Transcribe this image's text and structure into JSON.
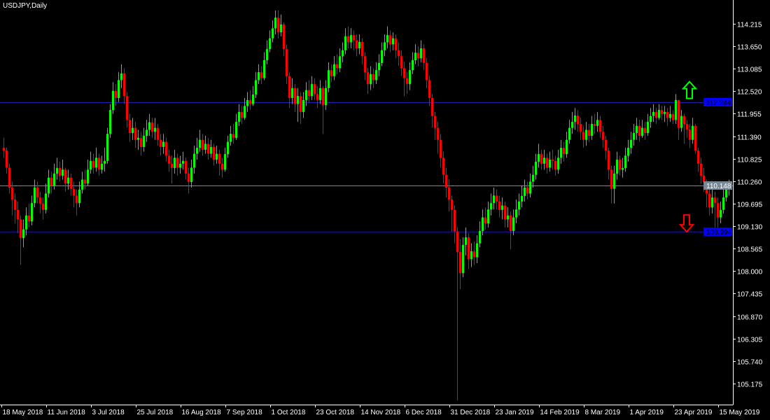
{
  "window": {
    "title": "USDJPY,Daily"
  },
  "colors": {
    "background": "#000000",
    "up": "#00ff00",
    "down": "#ff0000",
    "axis": "#ffffff",
    "resistance_line": "#2020b0",
    "bid_line": "#778899",
    "support_line": "#0000ff"
  },
  "chart_data": {
    "type": "candlestick",
    "symbol": "USDJPY",
    "timeframe": "Daily",
    "ylim": [
      104.647,
      114.813
    ],
    "grid": false,
    "y_ticks": [
      "114.215",
      "113.650",
      "113.085",
      "112.520",
      "111.955",
      "111.390",
      "110.825",
      "110.260",
      "109.695",
      "109.130",
      "108.565",
      "108.000",
      "107.435",
      "106.870",
      "106.305",
      "105.740",
      "105.175"
    ],
    "x_ticks": [
      {
        "label": "18 May 2018",
        "index": 0
      },
      {
        "label": "11 Jun 2018",
        "index": 16
      },
      {
        "label": "3 Jul 2018",
        "index": 32
      },
      {
        "label": "25 Jul 2018",
        "index": 48
      },
      {
        "label": "16 Aug 2018",
        "index": 64
      },
      {
        "label": "7 Sep 2018",
        "index": 80
      },
      {
        "label": "1 Oct 2018",
        "index": 96
      },
      {
        "label": "23 Oct 2018",
        "index": 112
      },
      {
        "label": "14 Nov 2018",
        "index": 128
      },
      {
        "label": "6 Dec 2018",
        "index": 144
      },
      {
        "label": "31 Dec 2018",
        "index": 160
      },
      {
        "label": "23 Jan 2019",
        "index": 176
      },
      {
        "label": "14 Feb 2019",
        "index": 192
      },
      {
        "label": "8 Mar 2019",
        "index": 208
      },
      {
        "label": "1 Apr 2019",
        "index": 224
      },
      {
        "label": "23 Apr 2019",
        "index": 240
      },
      {
        "label": "15 May 2019",
        "index": 256
      }
    ],
    "first_open": 111.1,
    "candles_hlc": [
      [
        111.35,
        110.85,
        111.03
      ],
      [
        111.1,
        110.45,
        110.6
      ],
      [
        110.7,
        109.95,
        110.1
      ],
      [
        110.25,
        109.4,
        109.8
      ],
      [
        109.95,
        109.2,
        109.54
      ],
      [
        109.75,
        108.95,
        109.3
      ],
      [
        109.4,
        108.16,
        108.83
      ],
      [
        109.3,
        108.6,
        109.05
      ],
      [
        109.6,
        108.9,
        109.4
      ],
      [
        109.7,
        109.1,
        109.25
      ],
      [
        109.9,
        109.15,
        109.71
      ],
      [
        110.3,
        109.6,
        110.1
      ],
      [
        110.25,
        109.7,
        109.85
      ],
      [
        110.0,
        109.45,
        109.7
      ],
      [
        109.85,
        109.3,
        109.54
      ],
      [
        110.2,
        109.45,
        109.95
      ],
      [
        110.55,
        109.85,
        110.35
      ],
      [
        110.5,
        109.95,
        110.15
      ],
      [
        110.7,
        110.05,
        110.45
      ],
      [
        110.85,
        110.3,
        110.59
      ],
      [
        110.75,
        110.25,
        110.4
      ],
      [
        110.8,
        110.3,
        110.55
      ],
      [
        110.6,
        110.0,
        110.2
      ],
      [
        110.55,
        110.05,
        110.35
      ],
      [
        110.45,
        109.9,
        110.07
      ],
      [
        110.25,
        109.6,
        109.9
      ],
      [
        110.05,
        109.4,
        109.71
      ],
      [
        110.25,
        109.6,
        110.05
      ],
      [
        110.5,
        109.95,
        110.3
      ],
      [
        110.55,
        110.05,
        110.2
      ],
      [
        110.8,
        110.15,
        110.55
      ],
      [
        111.0,
        110.45,
        110.77
      ],
      [
        110.95,
        110.45,
        110.6
      ],
      [
        111.1,
        110.5,
        110.85
      ],
      [
        110.95,
        110.4,
        110.55
      ],
      [
        110.9,
        110.45,
        110.7
      ],
      [
        111.1,
        110.5,
        110.77
      ],
      [
        111.6,
        110.7,
        111.45
      ],
      [
        112.2,
        111.35,
        112.05
      ],
      [
        112.75,
        111.95,
        112.53
      ],
      [
        112.7,
        112.15,
        112.35
      ],
      [
        113.0,
        112.25,
        112.8
      ],
      [
        113.2,
        112.6,
        112.97
      ],
      [
        113.1,
        112.2,
        112.4
      ],
      [
        112.5,
        111.6,
        111.8
      ],
      [
        111.95,
        111.25,
        111.47
      ],
      [
        111.85,
        111.3,
        111.6
      ],
      [
        111.75,
        111.1,
        111.3
      ],
      [
        111.55,
        111.05,
        111.35
      ],
      [
        111.5,
        110.9,
        111.12
      ],
      [
        111.6,
        111.0,
        111.4
      ],
      [
        111.8,
        111.25,
        111.55
      ],
      [
        111.95,
        111.4,
        111.74
      ],
      [
        111.85,
        111.35,
        111.5
      ],
      [
        111.85,
        111.3,
        111.6
      ],
      [
        111.7,
        111.15,
        111.3
      ],
      [
        111.45,
        110.9,
        111.12
      ],
      [
        111.45,
        110.95,
        111.25
      ],
      [
        111.35,
        110.75,
        110.9
      ],
      [
        111.05,
        110.5,
        110.7
      ],
      [
        110.9,
        110.2,
        110.59
      ],
      [
        111.05,
        110.45,
        110.85
      ],
      [
        110.95,
        110.4,
        110.6
      ],
      [
        110.9,
        110.45,
        110.7
      ],
      [
        111.0,
        110.55,
        110.77
      ],
      [
        110.85,
        110.3,
        110.45
      ],
      [
        110.6,
        109.95,
        110.24
      ],
      [
        110.8,
        110.1,
        110.6
      ],
      [
        111.15,
        110.45,
        110.95
      ],
      [
        111.35,
        110.8,
        111.1
      ],
      [
        111.55,
        111.0,
        111.3
      ],
      [
        111.45,
        110.9,
        111.05
      ],
      [
        111.4,
        110.95,
        111.2
      ],
      [
        111.35,
        110.8,
        110.95
      ],
      [
        111.3,
        110.85,
        111.12
      ],
      [
        111.2,
        110.65,
        110.8
      ],
      [
        111.15,
        110.7,
        110.95
      ],
      [
        111.05,
        110.4,
        110.7
      ],
      [
        110.85,
        110.35,
        110.55
      ],
      [
        111.1,
        110.5,
        110.94
      ],
      [
        111.4,
        110.85,
        111.25
      ],
      [
        111.65,
        111.15,
        111.45
      ],
      [
        111.7,
        111.2,
        111.35
      ],
      [
        111.95,
        111.3,
        111.75
      ],
      [
        112.2,
        111.65,
        112.0
      ],
      [
        112.15,
        111.7,
        111.85
      ],
      [
        112.35,
        111.8,
        112.15
      ],
      [
        112.5,
        112.0,
        112.3
      ],
      [
        112.55,
        112.05,
        112.2
      ],
      [
        112.65,
        112.15,
        112.44
      ],
      [
        113.0,
        112.35,
        112.8
      ],
      [
        113.2,
        112.7,
        113.0
      ],
      [
        113.15,
        112.7,
        112.85
      ],
      [
        113.5,
        112.8,
        113.3
      ],
      [
        113.8,
        113.2,
        113.58
      ],
      [
        114.05,
        113.5,
        113.85
      ],
      [
        114.3,
        113.75,
        114.1
      ],
      [
        114.55,
        113.95,
        114.37
      ],
      [
        114.55,
        113.85,
        114.0
      ],
      [
        114.45,
        113.9,
        114.2
      ],
      [
        114.25,
        113.4,
        113.58
      ],
      [
        113.7,
        112.7,
        112.9
      ],
      [
        113.0,
        112.1,
        112.35
      ],
      [
        112.85,
        112.2,
        112.6
      ],
      [
        112.7,
        112.0,
        112.2
      ],
      [
        112.6,
        111.75,
        112.4
      ],
      [
        112.5,
        111.7,
        112.0
      ],
      [
        112.5,
        111.85,
        112.3
      ],
      [
        112.75,
        112.15,
        112.55
      ],
      [
        112.8,
        112.25,
        112.4
      ],
      [
        112.9,
        112.3,
        112.7
      ],
      [
        112.85,
        112.3,
        112.45
      ],
      [
        112.65,
        112.1,
        112.3
      ],
      [
        112.8,
        112.2,
        112.6
      ],
      [
        112.65,
        111.45,
        112.17
      ],
      [
        112.8,
        112.05,
        112.6
      ],
      [
        113.25,
        112.5,
        113.05
      ],
      [
        113.2,
        112.75,
        112.9
      ],
      [
        113.4,
        112.8,
        113.2
      ],
      [
        113.45,
        112.95,
        113.1
      ],
      [
        113.6,
        113.0,
        113.4
      ],
      [
        113.75,
        113.25,
        113.55
      ],
      [
        114.1,
        113.45,
        113.9
      ],
      [
        114.15,
        113.6,
        113.75
      ],
      [
        114.1,
        113.6,
        113.93
      ],
      [
        114.05,
        113.55,
        113.8
      ],
      [
        113.95,
        113.4,
        113.6
      ],
      [
        113.95,
        113.45,
        113.76
      ],
      [
        113.85,
        113.2,
        113.4
      ],
      [
        113.5,
        112.8,
        113.0
      ],
      [
        113.1,
        112.45,
        112.7
      ],
      [
        113.15,
        112.55,
        112.95
      ],
      [
        113.1,
        112.6,
        112.8
      ],
      [
        113.25,
        112.7,
        113.05
      ],
      [
        113.45,
        112.9,
        113.23
      ],
      [
        113.75,
        113.15,
        113.55
      ],
      [
        113.95,
        113.4,
        113.75
      ],
      [
        114.15,
        113.6,
        113.93
      ],
      [
        114.05,
        113.5,
        113.7
      ],
      [
        114.0,
        113.55,
        113.85
      ],
      [
        113.95,
        113.35,
        113.55
      ],
      [
        113.75,
        113.15,
        113.4
      ],
      [
        113.55,
        112.9,
        113.1
      ],
      [
        113.25,
        112.4,
        112.85
      ],
      [
        113.0,
        112.45,
        112.7
      ],
      [
        113.25,
        112.55,
        113.05
      ],
      [
        113.5,
        112.95,
        113.3
      ],
      [
        113.7,
        113.2,
        113.49
      ],
      [
        113.65,
        113.15,
        113.35
      ],
      [
        113.8,
        113.25,
        113.6
      ],
      [
        113.7,
        113.05,
        113.23
      ],
      [
        113.35,
        112.6,
        112.8
      ],
      [
        112.9,
        112.15,
        112.35
      ],
      [
        112.45,
        111.6,
        111.9
      ],
      [
        112.0,
        111.3,
        111.6
      ],
      [
        111.75,
        110.95,
        111.3
      ],
      [
        111.45,
        110.6,
        110.85
      ],
      [
        111.0,
        110.2,
        110.42
      ],
      [
        110.6,
        109.85,
        110.1
      ],
      [
        110.3,
        109.5,
        109.8
      ],
      [
        109.9,
        109.0,
        109.54
      ],
      [
        109.65,
        108.7,
        109.0
      ],
      [
        109.1,
        104.75,
        108.48
      ],
      [
        108.8,
        107.55,
        107.95
      ],
      [
        108.85,
        107.85,
        108.66
      ],
      [
        109.1,
        108.4,
        108.85
      ],
      [
        108.95,
        108.05,
        108.3
      ],
      [
        108.7,
        108.1,
        108.5
      ],
      [
        108.75,
        108.15,
        108.35
      ],
      [
        108.9,
        108.2,
        108.7
      ],
      [
        109.25,
        108.6,
        109.01
      ],
      [
        109.55,
        108.9,
        109.35
      ],
      [
        109.6,
        109.05,
        109.2
      ],
      [
        109.75,
        109.1,
        109.55
      ],
      [
        109.95,
        109.4,
        109.71
      ],
      [
        110.1,
        109.55,
        109.9
      ],
      [
        110.05,
        109.55,
        109.75
      ],
      [
        109.9,
        109.35,
        109.54
      ],
      [
        109.85,
        109.3,
        109.65
      ],
      [
        109.75,
        109.1,
        109.3
      ],
      [
        109.6,
        109.1,
        109.4
      ],
      [
        109.5,
        108.55,
        109.01
      ],
      [
        109.55,
        108.9,
        109.35
      ],
      [
        109.8,
        109.2,
        109.55
      ],
      [
        109.95,
        109.4,
        109.75
      ],
      [
        110.15,
        109.6,
        109.89
      ],
      [
        110.3,
        109.75,
        110.1
      ],
      [
        110.25,
        109.8,
        109.95
      ],
      [
        110.45,
        109.85,
        110.25
      ],
      [
        110.65,
        110.1,
        110.42
      ],
      [
        110.95,
        110.3,
        110.75
      ],
      [
        111.2,
        110.6,
        110.94
      ],
      [
        111.05,
        110.55,
        110.7
      ],
      [
        111.05,
        110.55,
        110.85
      ],
      [
        110.95,
        110.45,
        110.6
      ],
      [
        111.0,
        110.5,
        110.8
      ],
      [
        111.05,
        110.55,
        110.77
      ],
      [
        110.9,
        110.4,
        110.55
      ],
      [
        111.05,
        110.45,
        110.85
      ],
      [
        111.3,
        110.7,
        111.1
      ],
      [
        111.25,
        110.75,
        110.94
      ],
      [
        111.5,
        110.85,
        111.3
      ],
      [
        111.8,
        111.2,
        111.6
      ],
      [
        112.0,
        111.45,
        111.75
      ],
      [
        112.1,
        111.55,
        111.91
      ],
      [
        112.05,
        111.5,
        111.7
      ],
      [
        111.85,
        111.3,
        111.5
      ],
      [
        111.65,
        111.1,
        111.3
      ],
      [
        111.75,
        111.15,
        111.55
      ],
      [
        111.7,
        111.25,
        111.4
      ],
      [
        111.9,
        111.3,
        111.7
      ],
      [
        111.95,
        111.45,
        111.65
      ],
      [
        112.0,
        111.5,
        111.8
      ],
      [
        111.9,
        111.35,
        111.5
      ],
      [
        111.65,
        111.1,
        111.3
      ],
      [
        111.4,
        110.8,
        111.03
      ],
      [
        111.1,
        110.3,
        110.55
      ],
      [
        110.65,
        109.7,
        110.07
      ],
      [
        110.65,
        109.7,
        110.45
      ],
      [
        111.0,
        110.3,
        110.8
      ],
      [
        110.9,
        110.4,
        110.55
      ],
      [
        110.85,
        110.35,
        110.59
      ],
      [
        111.1,
        110.5,
        110.9
      ],
      [
        111.3,
        110.75,
        111.1
      ],
      [
        111.5,
        110.95,
        111.3
      ],
      [
        111.7,
        111.15,
        111.47
      ],
      [
        111.85,
        111.3,
        111.65
      ],
      [
        111.8,
        111.25,
        111.4
      ],
      [
        111.8,
        111.35,
        111.6
      ],
      [
        111.75,
        111.3,
        111.47
      ],
      [
        111.95,
        111.4,
        111.75
      ],
      [
        112.1,
        111.6,
        111.9
      ],
      [
        112.2,
        111.75,
        112.0
      ],
      [
        112.1,
        111.7,
        111.85
      ],
      [
        112.2,
        111.8,
        112.05
      ],
      [
        112.15,
        111.8,
        111.95
      ],
      [
        112.15,
        111.75,
        112.0
      ],
      [
        112.1,
        111.65,
        111.85
      ],
      [
        112.15,
        111.75,
        111.95
      ],
      [
        112.05,
        111.7,
        111.8
      ],
      [
        112.45,
        111.7,
        112.3
      ],
      [
        112.3,
        111.3,
        111.6
      ],
      [
        112.05,
        111.5,
        111.9
      ],
      [
        111.95,
        111.2,
        111.7
      ],
      [
        111.8,
        111.35,
        111.56
      ],
      [
        111.7,
        111.1,
        111.3
      ],
      [
        111.85,
        111.2,
        111.65
      ],
      [
        111.7,
        110.95,
        111.03
      ],
      [
        111.1,
        110.5,
        110.7
      ],
      [
        110.85,
        110.2,
        110.4
      ],
      [
        110.6,
        110.0,
        110.24
      ],
      [
        110.3,
        109.6,
        109.95
      ],
      [
        110.1,
        109.4,
        109.6
      ],
      [
        110.05,
        109.45,
        109.85
      ],
      [
        110.0,
        109.1,
        109.71
      ],
      [
        109.85,
        109.0,
        109.35
      ],
      [
        109.75,
        109.2,
        109.54
      ],
      [
        110.05,
        109.45,
        109.85
      ],
      [
        110.25,
        109.75,
        110.05
      ],
      [
        110.3,
        109.9,
        110.15
      ]
    ],
    "horizontal_lines": [
      {
        "price": 112.244,
        "label": "112.244",
        "color": "#2020b0"
      },
      {
        "price": 110.148,
        "label": "110.148",
        "color": "#778899"
      },
      {
        "price": 108.994,
        "label": "108.994",
        "color": "#0000ff"
      }
    ],
    "arrows": [
      {
        "direction": "up",
        "candle_index": 245,
        "price": 112.55,
        "color": "#00ff00"
      },
      {
        "direction": "down",
        "candle_index": 244,
        "price": 109.2,
        "color": "#ff0000"
      }
    ]
  }
}
